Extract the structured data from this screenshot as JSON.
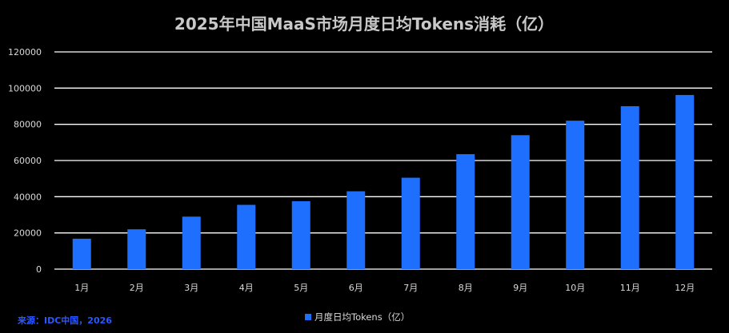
{
  "colors": {
    "background": "#000000",
    "bar": "#1f6fff",
    "grid": "#ffffff",
    "text": "#d9d9d9",
    "title": "#c8c8c8",
    "source": "#2b57ff"
  },
  "source_note": "来源：IDC中国，2026",
  "chart_data": {
    "type": "bar",
    "title": "2025年中国MaaS市场月度日均Tokens消耗（亿）",
    "categories": [
      "1月",
      "2月",
      "3月",
      "4月",
      "5月",
      "6月",
      "7月",
      "8月",
      "9月",
      "10月",
      "11月",
      "12月"
    ],
    "series": [
      {
        "name": "月度日均Tokens（亿）",
        "values": [
          16800,
          22000,
          29000,
          35500,
          37500,
          43000,
          50500,
          63500,
          74000,
          82000,
          90000,
          96200
        ]
      }
    ],
    "ylim": [
      0,
      120000
    ],
    "yticks": [
      "0",
      "20000",
      "40000",
      "60000",
      "80000",
      "100000",
      "120000"
    ],
    "grid": true,
    "legend_position": "bottom-center"
  }
}
